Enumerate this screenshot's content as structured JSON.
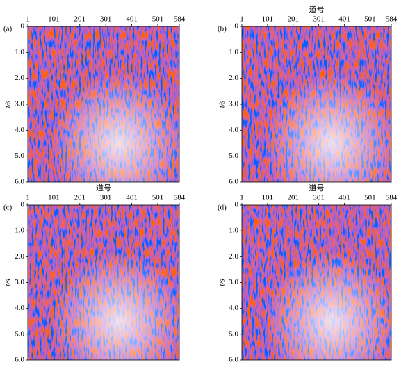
{
  "chart_data": [
    {
      "type": "seismic",
      "panel": "(a)",
      "ylabel": "t/s",
      "xlim": [
        1,
        584
      ],
      "xticks": [
        1,
        101,
        201,
        301,
        401,
        501,
        584
      ],
      "ylim": [
        0,
        6
      ],
      "yticks": [
        0,
        {
          "value": 1,
          "label": "1.0"
        },
        {
          "value": 2,
          "label": "2.0"
        },
        {
          "value": 3,
          "label": "3.0"
        },
        {
          "value": 4,
          "label": "4.0"
        },
        {
          "value": 5,
          "label": "5.0"
        },
        {
          "value": 6,
          "label": "6.0"
        }
      ]
    },
    {
      "type": "seismic",
      "panel": "(b)",
      "xlabel": "道号",
      "ylabel": "t/s",
      "xlim": [
        1,
        584
      ],
      "xticks": [
        1,
        101,
        201,
        301,
        401,
        501,
        584
      ],
      "ylim": [
        0,
        6
      ],
      "yticks": [
        0,
        {
          "value": 1,
          "label": "1.0"
        },
        {
          "value": 2,
          "label": "2.0"
        },
        {
          "value": 3,
          "label": "3.0"
        },
        {
          "value": 4,
          "label": "4.0"
        },
        {
          "value": 5,
          "label": "5.0"
        },
        {
          "value": 6,
          "label": "6.0"
        }
      ]
    },
    {
      "type": "seismic",
      "panel": "(c)",
      "xlabel": "道号",
      "ylabel": "t/s",
      "xlim": [
        1,
        584
      ],
      "xticks": [
        1,
        101,
        201,
        301,
        401,
        501,
        584
      ],
      "ylim": [
        0,
        6
      ],
      "yticks": [
        0,
        {
          "value": 1,
          "label": "1.0"
        },
        {
          "value": 2,
          "label": "2.0"
        },
        {
          "value": 3,
          "label": "3.0"
        },
        {
          "value": 4,
          "label": "4.0"
        },
        {
          "value": 5,
          "label": "5.0"
        },
        {
          "value": 6,
          "label": "6.0"
        }
      ]
    },
    {
      "type": "seismic",
      "panel": "(d)",
      "xlabel": "道号",
      "ylabel": "t/s",
      "xlim": [
        1,
        584
      ],
      "xticks": [
        1,
        101,
        201,
        301,
        401,
        501,
        584
      ],
      "ylim": [
        0,
        6
      ],
      "yticks": [
        0,
        {
          "value": 1,
          "label": "1.0"
        },
        {
          "value": 2,
          "label": "2.0"
        },
        {
          "value": 3,
          "label": "3.0"
        },
        {
          "value": 4,
          "label": "4.0"
        },
        {
          "value": 5,
          "label": "5.0"
        },
        {
          "value": 6,
          "label": "6.0"
        }
      ]
    }
  ]
}
